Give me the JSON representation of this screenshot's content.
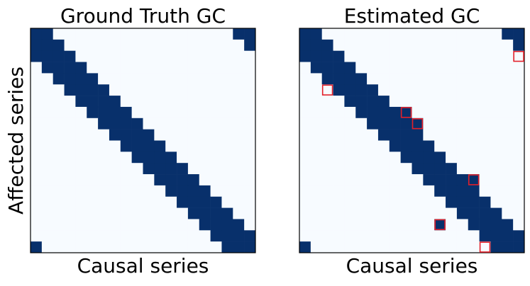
{
  "chart_data": [
    {
      "type": "heatmap",
      "title": "Ground Truth GC",
      "xlabel": "Causal series",
      "ylabel": "Affected series",
      "colors": [
        "#f7fbff",
        "#08306b"
      ],
      "matrix": [
        [
          1,
          1,
          0,
          0,
          0,
          0,
          0,
          0,
          0,
          0,
          0,
          0,
          0,
          0,
          0,
          0,
          0,
          0,
          1,
          1
        ],
        [
          1,
          1,
          1,
          0,
          0,
          0,
          0,
          0,
          0,
          0,
          0,
          0,
          0,
          0,
          0,
          0,
          0,
          0,
          0,
          1
        ],
        [
          1,
          1,
          1,
          1,
          0,
          0,
          0,
          0,
          0,
          0,
          0,
          0,
          0,
          0,
          0,
          0,
          0,
          0,
          0,
          0
        ],
        [
          0,
          1,
          1,
          1,
          1,
          0,
          0,
          0,
          0,
          0,
          0,
          0,
          0,
          0,
          0,
          0,
          0,
          0,
          0,
          0
        ],
        [
          0,
          0,
          1,
          1,
          1,
          1,
          0,
          0,
          0,
          0,
          0,
          0,
          0,
          0,
          0,
          0,
          0,
          0,
          0,
          0
        ],
        [
          0,
          0,
          0,
          1,
          1,
          1,
          1,
          0,
          0,
          0,
          0,
          0,
          0,
          0,
          0,
          0,
          0,
          0,
          0,
          0
        ],
        [
          0,
          0,
          0,
          0,
          1,
          1,
          1,
          1,
          0,
          0,
          0,
          0,
          0,
          0,
          0,
          0,
          0,
          0,
          0,
          0
        ],
        [
          0,
          0,
          0,
          0,
          0,
          1,
          1,
          1,
          1,
          0,
          0,
          0,
          0,
          0,
          0,
          0,
          0,
          0,
          0,
          0
        ],
        [
          0,
          0,
          0,
          0,
          0,
          0,
          1,
          1,
          1,
          1,
          0,
          0,
          0,
          0,
          0,
          0,
          0,
          0,
          0,
          0
        ],
        [
          0,
          0,
          0,
          0,
          0,
          0,
          0,
          1,
          1,
          1,
          1,
          0,
          0,
          0,
          0,
          0,
          0,
          0,
          0,
          0
        ],
        [
          0,
          0,
          0,
          0,
          0,
          0,
          0,
          0,
          1,
          1,
          1,
          1,
          0,
          0,
          0,
          0,
          0,
          0,
          0,
          0
        ],
        [
          0,
          0,
          0,
          0,
          0,
          0,
          0,
          0,
          0,
          1,
          1,
          1,
          1,
          0,
          0,
          0,
          0,
          0,
          0,
          0
        ],
        [
          0,
          0,
          0,
          0,
          0,
          0,
          0,
          0,
          0,
          0,
          1,
          1,
          1,
          1,
          0,
          0,
          0,
          0,
          0,
          0
        ],
        [
          0,
          0,
          0,
          0,
          0,
          0,
          0,
          0,
          0,
          0,
          0,
          1,
          1,
          1,
          1,
          0,
          0,
          0,
          0,
          0
        ],
        [
          0,
          0,
          0,
          0,
          0,
          0,
          0,
          0,
          0,
          0,
          0,
          0,
          1,
          1,
          1,
          1,
          0,
          0,
          0,
          0
        ],
        [
          0,
          0,
          0,
          0,
          0,
          0,
          0,
          0,
          0,
          0,
          0,
          0,
          0,
          1,
          1,
          1,
          1,
          0,
          0,
          0
        ],
        [
          0,
          0,
          0,
          0,
          0,
          0,
          0,
          0,
          0,
          0,
          0,
          0,
          0,
          0,
          1,
          1,
          1,
          1,
          0,
          0
        ],
        [
          0,
          0,
          0,
          0,
          0,
          0,
          0,
          0,
          0,
          0,
          0,
          0,
          0,
          0,
          0,
          1,
          1,
          1,
          1,
          0
        ],
        [
          0,
          0,
          0,
          0,
          0,
          0,
          0,
          0,
          0,
          0,
          0,
          0,
          0,
          0,
          0,
          0,
          1,
          1,
          1,
          1
        ],
        [
          1,
          0,
          0,
          0,
          0,
          0,
          0,
          0,
          0,
          0,
          0,
          0,
          0,
          0,
          0,
          0,
          0,
          1,
          1,
          1
        ]
      ]
    },
    {
      "type": "heatmap",
      "title": "Estimated GC",
      "xlabel": "Causal series",
      "colors": [
        "#f7fbff",
        "#08306b"
      ],
      "box_color": "#e3202a",
      "matrix": [
        [
          1,
          1,
          0,
          0,
          0,
          0,
          0,
          0,
          0,
          0,
          0,
          0,
          0,
          0,
          0,
          0,
          0,
          0,
          1,
          1
        ],
        [
          1,
          1,
          1,
          0,
          0,
          0,
          0,
          0,
          0,
          0,
          0,
          0,
          0,
          0,
          0,
          0,
          0,
          0,
          0,
          1
        ],
        [
          1,
          1,
          1,
          1,
          0,
          0,
          0,
          0,
          0,
          0,
          0,
          0,
          0,
          0,
          0,
          0,
          0,
          0,
          0,
          0
        ],
        [
          0,
          1,
          1,
          1,
          1,
          0,
          0,
          0,
          0,
          0,
          0,
          0,
          0,
          0,
          0,
          0,
          0,
          0,
          0,
          0
        ],
        [
          0,
          0,
          1,
          1,
          1,
          1,
          0,
          0,
          0,
          0,
          0,
          0,
          0,
          0,
          0,
          0,
          0,
          0,
          0,
          0
        ],
        [
          0,
          0,
          0,
          1,
          1,
          1,
          1,
          0,
          0,
          0,
          0,
          0,
          0,
          0,
          0,
          0,
          0,
          0,
          0,
          0
        ],
        [
          0,
          0,
          0,
          0,
          1,
          1,
          1,
          1,
          0,
          0,
          0,
          0,
          0,
          0,
          0,
          0,
          0,
          0,
          0,
          0
        ],
        [
          0,
          0,
          0,
          0,
          0,
          1,
          1,
          1,
          1,
          1,
          0,
          0,
          0,
          0,
          0,
          0,
          0,
          0,
          0,
          0
        ],
        [
          0,
          0,
          0,
          0,
          0,
          0,
          1,
          1,
          1,
          1,
          1,
          0,
          0,
          0,
          0,
          0,
          0,
          0,
          0,
          0
        ],
        [
          0,
          0,
          0,
          0,
          0,
          0,
          0,
          1,
          1,
          1,
          1,
          0,
          0,
          0,
          0,
          0,
          0,
          0,
          0,
          0
        ],
        [
          0,
          0,
          0,
          0,
          0,
          0,
          0,
          0,
          1,
          1,
          1,
          1,
          0,
          0,
          0,
          0,
          0,
          0,
          0,
          0
        ],
        [
          0,
          0,
          0,
          0,
          0,
          0,
          0,
          0,
          0,
          1,
          1,
          1,
          1,
          0,
          0,
          0,
          0,
          0,
          0,
          0
        ],
        [
          0,
          0,
          0,
          0,
          0,
          0,
          0,
          0,
          0,
          0,
          1,
          1,
          1,
          1,
          0,
          0,
          0,
          0,
          0,
          0
        ],
        [
          0,
          0,
          0,
          0,
          0,
          0,
          0,
          0,
          0,
          0,
          0,
          1,
          1,
          1,
          1,
          1,
          0,
          0,
          0,
          0
        ],
        [
          0,
          0,
          0,
          0,
          0,
          0,
          0,
          0,
          0,
          0,
          0,
          0,
          1,
          1,
          1,
          1,
          0,
          0,
          0,
          0
        ],
        [
          0,
          0,
          0,
          0,
          0,
          0,
          0,
          0,
          0,
          0,
          0,
          0,
          0,
          1,
          1,
          1,
          1,
          0,
          0,
          0
        ],
        [
          0,
          0,
          0,
          0,
          0,
          0,
          0,
          0,
          0,
          0,
          0,
          0,
          0,
          0,
          1,
          1,
          1,
          1,
          0,
          0
        ],
        [
          0,
          0,
          0,
          0,
          0,
          0,
          0,
          0,
          0,
          0,
          0,
          0,
          1,
          0,
          0,
          1,
          1,
          1,
          1,
          0
        ],
        [
          0,
          0,
          0,
          0,
          0,
          0,
          0,
          0,
          0,
          0,
          0,
          0,
          0,
          0,
          0,
          0,
          1,
          1,
          1,
          1
        ],
        [
          1,
          0,
          0,
          0,
          0,
          0,
          0,
          0,
          0,
          0,
          0,
          0,
          0,
          0,
          0,
          0,
          0,
          1,
          1,
          1
        ]
      ],
      "boxes": [
        [
          2,
          19
        ],
        [
          5,
          2
        ],
        [
          7,
          9
        ],
        [
          8,
          10
        ],
        [
          13,
          15
        ],
        [
          17,
          12
        ],
        [
          19,
          16
        ]
      ]
    }
  ]
}
